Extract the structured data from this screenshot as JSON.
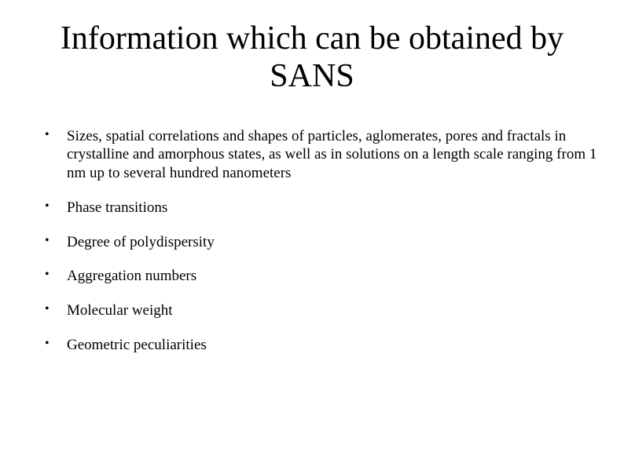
{
  "slide": {
    "title": "Information which can be obtained by SANS",
    "title_fontsize": 42,
    "bullets": [
      "Sizes, spatial correlations and shapes of particles, aglomerates, pores and fractals in crystalline and amorphous states, as well as in solutions on a length scale ranging from 1 nm up to several hundred nanometers",
      "Phase transitions",
      "Degree of polydispersity",
      "Aggregation numbers",
      "Molecular weight",
      "Geometric peculiarities"
    ],
    "bullet_fontsize": 19,
    "background_color": "#ffffff",
    "text_color": "#000000",
    "font_family": "Comic Sans MS"
  }
}
